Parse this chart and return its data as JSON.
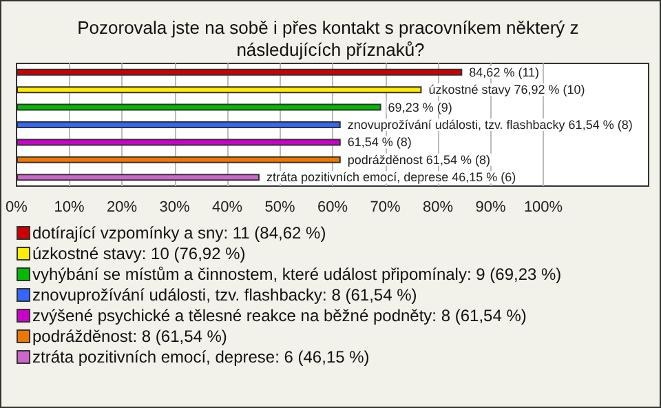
{
  "chart_data": {
    "type": "bar",
    "orientation": "horizontal",
    "stacked": true,
    "title": "Pozorovala jste na sobě i přes kontakt s pracovníkem některý z následujících příznaků?",
    "categories": [
      null,
      null,
      null,
      null,
      null,
      null,
      null
    ],
    "xlim": [
      0,
      120
    ],
    "xticks": [
      {
        "value": 0,
        "label": "0%"
      },
      {
        "value": 10,
        "label": "10%"
      },
      {
        "value": 20,
        "label": "20%"
      },
      {
        "value": 30,
        "label": "30%"
      },
      {
        "value": 40,
        "label": "40%"
      },
      {
        "value": 50,
        "label": "50%"
      },
      {
        "value": 60,
        "label": "60%"
      },
      {
        "value": 70,
        "label": "70%"
      },
      {
        "value": 80,
        "label": "80%"
      },
      {
        "value": 90,
        "label": "90%"
      },
      {
        "value": 100,
        "label": "100%"
      }
    ],
    "grid": "x",
    "legend": "bottom",
    "series": [
      {
        "name": "dotírající vzpomínky a sny: 11 (84,62 %)",
        "color": "#cc0000",
        "values": [
          84.62,
          null,
          null,
          null,
          null,
          null,
          null
        ],
        "value_labels": [
          "84,62 % (11)",
          null,
          null,
          null,
          null,
          null,
          null
        ]
      },
      {
        "name": "úzkostné stavy: 10 (76,92 %)",
        "color": "#ffee00",
        "values": [
          null,
          76.92,
          null,
          null,
          null,
          null,
          null
        ],
        "value_labels": [
          null,
          "úzkostné stavy 76,92 % (10)",
          null,
          null,
          null,
          null,
          null
        ]
      },
      {
        "name": "vyhýbání se místům a činnostem, které událost připomínaly: 9 (69,23 %)",
        "color": "#00bb00",
        "values": [
          null,
          null,
          69.23,
          null,
          null,
          null,
          null
        ],
        "value_labels": [
          null,
          null,
          "69,23 % (9)",
          null,
          null,
          null,
          null
        ]
      },
      {
        "name": "znovuprožívání události, tzv. flashbacky: 8 (61,54 %)",
        "color": "#3366ff",
        "values": [
          null,
          null,
          null,
          61.54,
          null,
          null,
          null
        ],
        "value_labels": [
          null,
          null,
          null,
          "znovuprožívání události, tzv. flashbacky 61,54 % (8)",
          null,
          null,
          null
        ]
      },
      {
        "name": "zvýšené psychické a tělesné reakce na běžné podněty: 8 (61,54 %)",
        "color": "#cc00cc",
        "values": [
          null,
          null,
          null,
          null,
          61.54,
          null,
          null
        ],
        "value_labels": [
          null,
          null,
          null,
          null,
          "61,54 % (8)",
          null,
          null
        ]
      },
      {
        "name": "podrážděnost: 8 (61,54 %)",
        "color": "#ee7700",
        "values": [
          null,
          null,
          null,
          null,
          null,
          61.54,
          null
        ],
        "value_labels": [
          null,
          null,
          null,
          null,
          null,
          "podrážděnost 61,54 % (8)",
          null
        ]
      },
      {
        "name": "ztráta pozitivních emocí, deprese: 6 (46,15 %)",
        "color": "#cc66cc",
        "values": [
          null,
          null,
          null,
          null,
          null,
          null,
          46.15
        ],
        "value_labels": [
          null,
          null,
          null,
          null,
          null,
          null,
          "ztráta pozitivních emocí, deprese 46,15 % (6)"
        ]
      }
    ]
  }
}
